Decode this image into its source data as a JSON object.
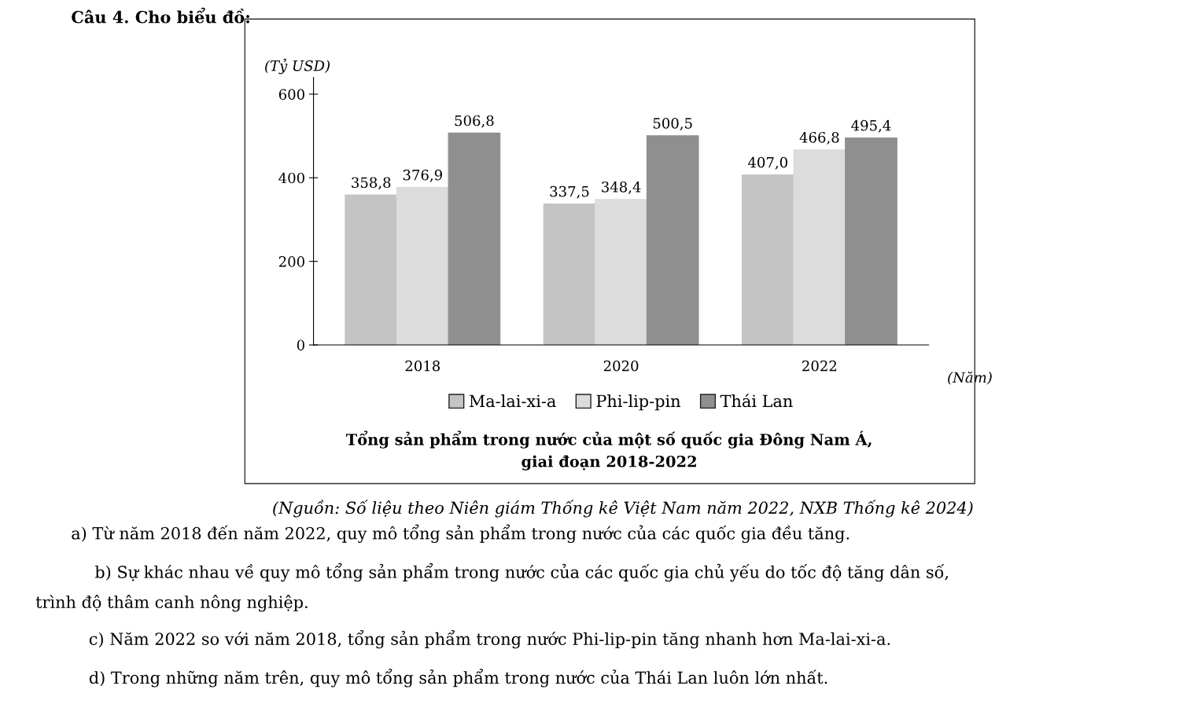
{
  "chart_data": {
    "type": "bar",
    "title": "Tổng sản phẩm trong nước của một số quốc gia Đông Nam Á,\ngiai đoạn 2018-2022",
    "ylabel": "(Tỷ USD)",
    "xlabel": "(Năm)",
    "categories": [
      "2018",
      "2020",
      "2022"
    ],
    "series": [
      {
        "name": "Ma-lai-xi-a",
        "color": "#c4c4c4",
        "values": [
          358.8,
          337.5,
          407.0
        ],
        "value_labels": [
          "358,8",
          "337,5",
          "407,0"
        ]
      },
      {
        "name": "Phi-lip-pin",
        "color": "#dcdcdc",
        "values": [
          376.9,
          348.4,
          466.8
        ],
        "value_labels": [
          "376,9",
          "348,4",
          "466,8"
        ]
      },
      {
        "name": "Thái Lan",
        "color": "#8f8f8f",
        "values": [
          506.8,
          500.5,
          495.4
        ],
        "value_labels": [
          "506,8",
          "500,5",
          "495,4"
        ]
      }
    ],
    "ylim": [
      0,
      640
    ],
    "yticks": [
      0,
      200,
      400,
      600
    ],
    "grid": false,
    "legend": "bottom",
    "annotations": [
      "Câu 4. Cho biểu đồ:",
      "(Nguồn: Số liệu theo Niên giám Thống kê Việt Nam năm 2022, NXB Thống kê 2024)",
      "a) Từ năm 2018 đến năm 2022, quy mô tổng sản phẩm trong nước của các quốc gia đều tăng.",
      "b) Sự khác nhau về quy mô tổng sản phẩm trong nước của các quốc gia chủ yếu do tốc độ tăng dân số,",
      "trình độ thâm canh nông nghiệp.",
      "c) Năm 2022 so với năm 2018, tổng sản phẩm trong nước Phi-lip-pin tăng nhanh hơn Ma-lai-xi-a.",
      "d) Trong những năm trên, quy mô tổng sản phẩm trong nước của Thái Lan luôn lớn nhất."
    ]
  }
}
